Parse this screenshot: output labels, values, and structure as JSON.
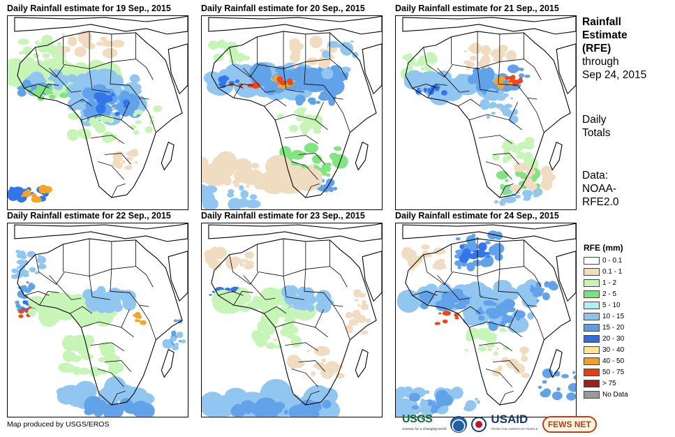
{
  "panels": [
    {
      "title": "Daily Rainfall estimate for 19 Sep., 2015",
      "rain": "p19"
    },
    {
      "title": "Daily Rainfall estimate for 20 Sep., 2015",
      "rain": "p20"
    },
    {
      "title": "Daily Rainfall estimate for 21 Sep., 2015",
      "rain": "p21"
    },
    {
      "title": "Daily Rainfall estimate for 22 Sep., 2015",
      "rain": "p22"
    },
    {
      "title": "Daily Rainfall estimate for 23 Sep., 2015",
      "rain": "p23"
    },
    {
      "title": "Daily Rainfall estimate for 24 Sep., 2015",
      "rain": "p24"
    }
  ],
  "side": {
    "title_line1": "Rainfall",
    "title_line2": "Estimate",
    "title_line3": "(RFE)",
    "through": "through",
    "date": "Sep 24, 2015",
    "totals_line1": "Daily",
    "totals_line2": "Totals",
    "data_line1": "Data:",
    "data_line2": "NOAA-",
    "data_line3": "RFE2.0"
  },
  "legend": {
    "title": "RFE (mm)",
    "items": [
      {
        "label": "0 - 0.1",
        "color": "#ffffff"
      },
      {
        "label": "0.1 - 1",
        "color": "#f0dcbe"
      },
      {
        "label": "1 - 2",
        "color": "#c4f5b4"
      },
      {
        "label": "2 - 5",
        "color": "#7ce37a"
      },
      {
        "label": "5 - 10",
        "color": "#b4eef5"
      },
      {
        "label": "10 - 15",
        "color": "#8cc3f0"
      },
      {
        "label": "15 - 20",
        "color": "#5a9ee8"
      },
      {
        "label": "20 - 30",
        "color": "#2a6ee8"
      },
      {
        "label": "30 - 40",
        "color": "#ffe68c"
      },
      {
        "label": "40 - 50",
        "color": "#f5a01e"
      },
      {
        "label": "50 - 75",
        "color": "#f03c0a"
      },
      {
        "label": "> 75",
        "color": "#a01e1e"
      },
      {
        "label": "No Data",
        "color": "#9a9a9a"
      }
    ]
  },
  "footer": {
    "credit": "Map produced by USGS/EROS",
    "logo_usgs": "USGS",
    "logo_usgs_tagline": "science for a changing world",
    "logo_usaid": "USAID",
    "logo_usaid_tagline": "FROM THE AMERICAN PEOPLE",
    "logo_fews": "FEWS NET"
  }
}
